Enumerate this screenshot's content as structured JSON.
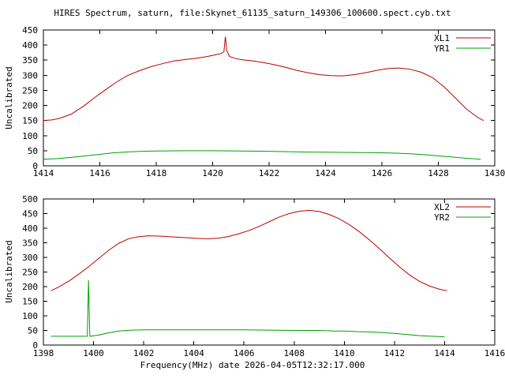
{
  "title": "HIRES Spectrum, saturn, file:Skynet_61135_saturn_149306_100600.spect.cyb.txt",
  "xlabel": "Frequency(MHz) date 2026-04-05T12:32:17.000",
  "colors": {
    "red": "#bb0000",
    "green": "#00a000",
    "axis": "#000000",
    "background": "#ffffff"
  },
  "chart_data": [
    {
      "type": "line",
      "ylabel": "Uncalibrated",
      "xlim": [
        1414,
        1430
      ],
      "ylim": [
        0,
        450
      ],
      "xtick_step": 2,
      "ytick_step": 50,
      "grid": false,
      "legend_position": "top-right",
      "series": [
        {
          "name": "XL1",
          "color": "#bb0000",
          "points": [
            [
              1414.0,
              150
            ],
            [
              1414.3,
              152
            ],
            [
              1414.6,
              158
            ],
            [
              1415.0,
              172
            ],
            [
              1415.4,
              196
            ],
            [
              1415.8,
              225
            ],
            [
              1416.2,
              252
            ],
            [
              1416.6,
              278
            ],
            [
              1417.0,
              300
            ],
            [
              1417.4,
              315
            ],
            [
              1417.8,
              328
            ],
            [
              1418.2,
              338
            ],
            [
              1418.6,
              347
            ],
            [
              1419.0,
              352
            ],
            [
              1419.4,
              356
            ],
            [
              1419.8,
              362
            ],
            [
              1420.1,
              368
            ],
            [
              1420.3,
              372
            ],
            [
              1420.4,
              378
            ],
            [
              1420.45,
              428
            ],
            [
              1420.5,
              382
            ],
            [
              1420.6,
              362
            ],
            [
              1420.8,
              356
            ],
            [
              1421.0,
              352
            ],
            [
              1421.4,
              348
            ],
            [
              1421.8,
              342
            ],
            [
              1422.2,
              335
            ],
            [
              1422.6,
              326
            ],
            [
              1423.0,
              316
            ],
            [
              1423.4,
              308
            ],
            [
              1423.8,
              302
            ],
            [
              1424.2,
              299
            ],
            [
              1424.6,
              298
            ],
            [
              1425.0,
              302
            ],
            [
              1425.4,
              308
            ],
            [
              1425.8,
              316
            ],
            [
              1426.2,
              322
            ],
            [
              1426.6,
              324
            ],
            [
              1427.0,
              320
            ],
            [
              1427.4,
              310
            ],
            [
              1427.8,
              292
            ],
            [
              1428.2,
              262
            ],
            [
              1428.6,
              225
            ],
            [
              1429.0,
              188
            ],
            [
              1429.4,
              160
            ],
            [
              1429.6,
              150
            ]
          ]
        },
        {
          "name": "YR1",
          "color": "#00a000",
          "points": [
            [
              1414.0,
              22
            ],
            [
              1414.5,
              24
            ],
            [
              1415.0,
              28
            ],
            [
              1415.5,
              33
            ],
            [
              1416.0,
              38
            ],
            [
              1416.5,
              43
            ],
            [
              1417.0,
              46
            ],
            [
              1417.5,
              48
            ],
            [
              1418.0,
              49
            ],
            [
              1419.0,
              50
            ],
            [
              1420.0,
              50
            ],
            [
              1421.0,
              49
            ],
            [
              1422.0,
              48
            ],
            [
              1423.0,
              46
            ],
            [
              1424.0,
              45
            ],
            [
              1425.0,
              44
            ],
            [
              1426.0,
              43
            ],
            [
              1426.5,
              42
            ],
            [
              1427.0,
              40
            ],
            [
              1427.5,
              37
            ],
            [
              1428.0,
              33
            ],
            [
              1428.5,
              29
            ],
            [
              1429.0,
              25
            ],
            [
              1429.5,
              22
            ]
          ]
        }
      ]
    },
    {
      "type": "line",
      "ylabel": "Uncalibrated",
      "xlim": [
        1398,
        1416
      ],
      "ylim": [
        0,
        500
      ],
      "xtick_step": 2,
      "ytick_step": 50,
      "grid": false,
      "legend_position": "top-right",
      "series": [
        {
          "name": "XL2",
          "color": "#bb0000",
          "points": [
            [
              1398.3,
              186
            ],
            [
              1398.6,
              198
            ],
            [
              1399.0,
              218
            ],
            [
              1399.4,
              242
            ],
            [
              1399.8,
              268
            ],
            [
              1400.2,
              296
            ],
            [
              1400.6,
              324
            ],
            [
              1401.0,
              348
            ],
            [
              1401.4,
              364
            ],
            [
              1401.8,
              371
            ],
            [
              1402.2,
              374
            ],
            [
              1402.6,
              373
            ],
            [
              1403.0,
              371
            ],
            [
              1403.4,
              369
            ],
            [
              1403.8,
              367
            ],
            [
              1404.2,
              365
            ],
            [
              1404.6,
              364
            ],
            [
              1405.0,
              366
            ],
            [
              1405.4,
              372
            ],
            [
              1405.8,
              381
            ],
            [
              1406.2,
              392
            ],
            [
              1406.6,
              406
            ],
            [
              1407.0,
              422
            ],
            [
              1407.4,
              438
            ],
            [
              1407.8,
              450
            ],
            [
              1408.2,
              458
            ],
            [
              1408.6,
              461
            ],
            [
              1409.0,
              457
            ],
            [
              1409.4,
              447
            ],
            [
              1409.8,
              432
            ],
            [
              1410.2,
              412
            ],
            [
              1410.6,
              388
            ],
            [
              1411.0,
              360
            ],
            [
              1411.4,
              330
            ],
            [
              1411.8,
              298
            ],
            [
              1412.2,
              268
            ],
            [
              1412.6,
              240
            ],
            [
              1413.0,
              218
            ],
            [
              1413.4,
              202
            ],
            [
              1413.8,
              191
            ],
            [
              1414.1,
              186
            ]
          ]
        },
        {
          "name": "YR2",
          "color": "#00a000",
          "points": [
            [
              1398.3,
              30
            ],
            [
              1399.0,
              30
            ],
            [
              1399.6,
              30
            ],
            [
              1399.75,
              30
            ],
            [
              1399.8,
              222
            ],
            [
              1399.85,
              30
            ],
            [
              1400.2,
              34
            ],
            [
              1400.6,
              42
            ],
            [
              1401.0,
              48
            ],
            [
              1401.5,
              51
            ],
            [
              1402.0,
              52
            ],
            [
              1403.0,
              52
            ],
            [
              1404.0,
              52
            ],
            [
              1405.0,
              52
            ],
            [
              1406.0,
              52
            ],
            [
              1407.0,
              51
            ],
            [
              1408.0,
              50
            ],
            [
              1409.0,
              50
            ],
            [
              1409.6,
              48
            ],
            [
              1410.0,
              48
            ],
            [
              1410.5,
              46
            ],
            [
              1411.0,
              45
            ],
            [
              1411.5,
              43
            ],
            [
              1412.0,
              40
            ],
            [
              1412.5,
              36
            ],
            [
              1413.0,
              32
            ],
            [
              1413.5,
              30
            ],
            [
              1414.0,
              28
            ]
          ]
        }
      ]
    }
  ]
}
